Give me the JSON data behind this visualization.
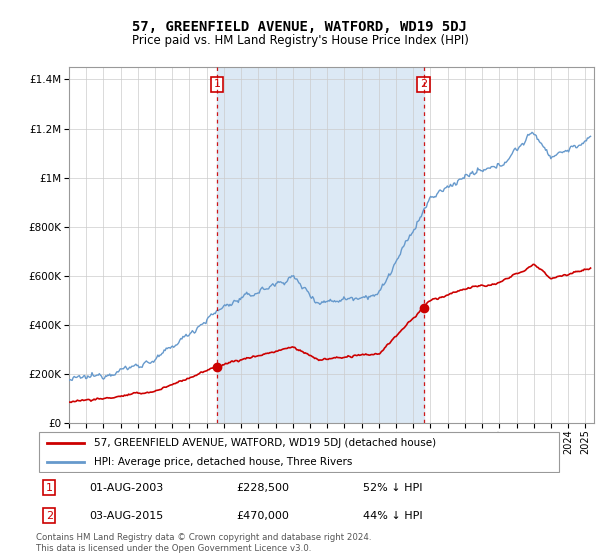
{
  "title": "57, GREENFIELD AVENUE, WATFORD, WD19 5DJ",
  "subtitle": "Price paid vs. HM Land Registry's House Price Index (HPI)",
  "legend_label_red": "57, GREENFIELD AVENUE, WATFORD, WD19 5DJ (detached house)",
  "legend_label_blue": "HPI: Average price, detached house, Three Rivers",
  "annotation1_date": "01-AUG-2003",
  "annotation1_price": "£228,500",
  "annotation1_hpi": "52% ↓ HPI",
  "annotation1_year": 2003.6,
  "annotation1_price_val": 228500,
  "annotation2_date": "03-AUG-2015",
  "annotation2_price": "£470,000",
  "annotation2_hpi": "44% ↓ HPI",
  "annotation2_year": 2015.6,
  "annotation2_price_val": 470000,
  "footer": "Contains HM Land Registry data © Crown copyright and database right 2024.\nThis data is licensed under the Open Government Licence v3.0.",
  "red_color": "#cc0000",
  "blue_color": "#6699cc",
  "shade_color": "#dce9f5",
  "ylim_min": 0,
  "ylim_max": 1450000,
  "xmin": 1995,
  "xmax": 2025.5,
  "bg_color": "#ffffff"
}
